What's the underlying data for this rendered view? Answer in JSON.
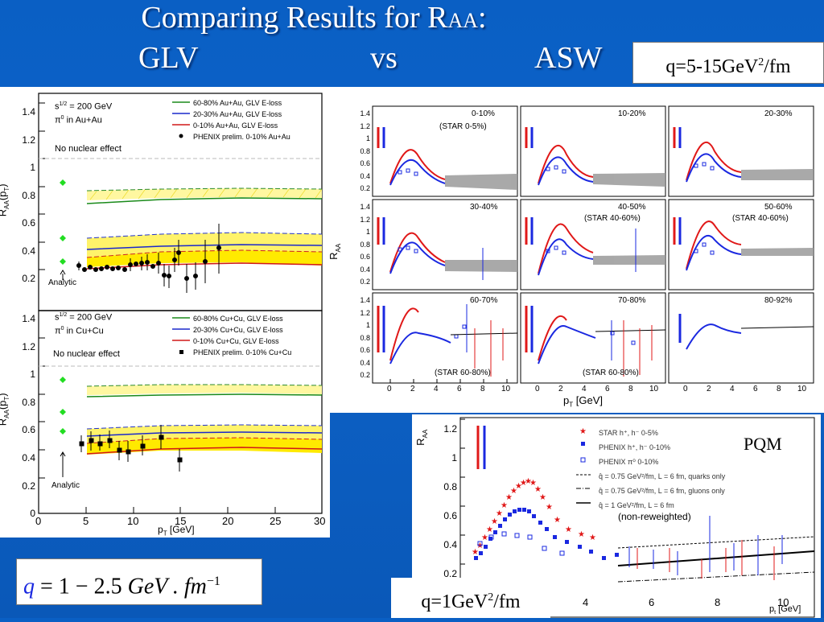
{
  "title": {
    "part1": "Comparing Results for R",
    "sub": "AA",
    "part2": ":",
    "glv": "GLV",
    "vs": "vs",
    "asw": "ASW"
  },
  "q_top": {
    "pre": "q=5-15GeV",
    "sup": "2",
    "post": "/fm"
  },
  "q_bottom": {
    "pre": "q=1GeV",
    "sup": "2",
    "post": "/fm"
  },
  "formula": {
    "q": "q",
    "eq": "= 1 − 2.5",
    "unit": "GeV . fm",
    "sup": "−1"
  },
  "left_top": {
    "energy": "s",
    "energy_sup": "1/2",
    "energy_val": "= 200 GeV",
    "particle": "π",
    "particle_sup": "0",
    "system": "in Au+Au",
    "no_effect": "No nuclear effect",
    "analytic": "Analytic",
    "ylabel": "R",
    "ylabel_sub": "AA",
    "ylabel_tail": "(p",
    "ylabel_tail_sub": "T",
    "ylabel_close": ")",
    "legend": [
      "60-80% Au+Au, GLV E-loss",
      "20-30% Au+Au, GLV E-loss",
      "0-10%   Au+Au, GLV E-loss",
      "PHENIX prelim. 0-10% Au+Au"
    ],
    "yticks": [
      "1.4",
      "1.2",
      "1",
      "0.8",
      "0.6",
      "0.4",
      "0.2"
    ]
  },
  "left_bottom": {
    "energy": "s",
    "energy_sup": "1/2",
    "energy_val": "= 200 GeV",
    "particle": "π",
    "particle_sup": "0",
    "system": "in Cu+Cu",
    "no_effect": "No nuclear effect",
    "analytic": "Analytic",
    "ylabel": "R",
    "ylabel_sub": "AA",
    "ylabel_tail": "(p",
    "ylabel_tail_sub": "T",
    "ylabel_close": ")",
    "legend": [
      "60-80% Cu+Cu, GLV E-loss",
      "20-30% Cu+Cu, GLV E-loss",
      "0-10%   Cu+Cu, GLV E-loss",
      "PHENIX prelim. 0-10% Cu+Cu"
    ],
    "yticks": [
      "1.4",
      "1.2",
      "1",
      "0.8",
      "0.6",
      "0.4",
      "0.2",
      "0"
    ],
    "xticks": [
      "0",
      "5",
      "10",
      "15",
      "20",
      "25",
      "30"
    ],
    "xlabel": "p",
    "xlabel_sub": "T",
    "xlabel_tail": "[GeV]"
  },
  "grid": {
    "labels": [
      "0-10%",
      "(STAR 0-5%)",
      "10-20%",
      "20-30%",
      "30-40%",
      "40-50%",
      "(STAR 40-60%)",
      "50-60%",
      "(STAR 40-60%)",
      "60-70%",
      "(STAR 60-80%)",
      "70-80%",
      "(STAR 60-80%)",
      "80-92%"
    ],
    "yticks": [
      "1.4",
      "1.2",
      "1",
      "0.8",
      "0.6",
      "0.4",
      "0.2"
    ],
    "xticks": [
      "0",
      "2",
      "4",
      "6",
      "8",
      "10"
    ],
    "ylabel": "R",
    "ylabel_sub": "AA",
    "xlabel": "p",
    "xlabel_sub": "T",
    "xlabel_tail": "[GeV]"
  },
  "pqm": {
    "yticks": [
      "1.2",
      "1",
      "0.8",
      "0.6",
      "0.4",
      "0.2"
    ],
    "xticks": [
      "4",
      "6",
      "8",
      "10"
    ],
    "ylabel": "R",
    "ylabel_sub": "AA",
    "xlabel": "p",
    "xlabel_sub": "t",
    "xlabel_tail": "[GeV]",
    "label": "PQM",
    "note": "(non-reweighted)",
    "legend": [
      "STAR  h⁺, h⁻ 0-5%",
      "PHENIX  h⁺, h⁻ 0-10%",
      "PHENIX  π⁰  0-10%",
      "q̂ = 0.75 GeV²/fm, L = 6 fm, quarks only",
      "q̂ = 0.75 GeV²/fm, L = 6 fm, gluons only",
      "q̂ = 1 GeV²/fm, L = 6 fm"
    ]
  },
  "colors": {
    "bg": "#0a5fc4",
    "red": "#e0141e",
    "blue": "#1020e8",
    "green": "#1a8a1a",
    "yellow": "#ffee00",
    "diamond": "#22dd22"
  }
}
